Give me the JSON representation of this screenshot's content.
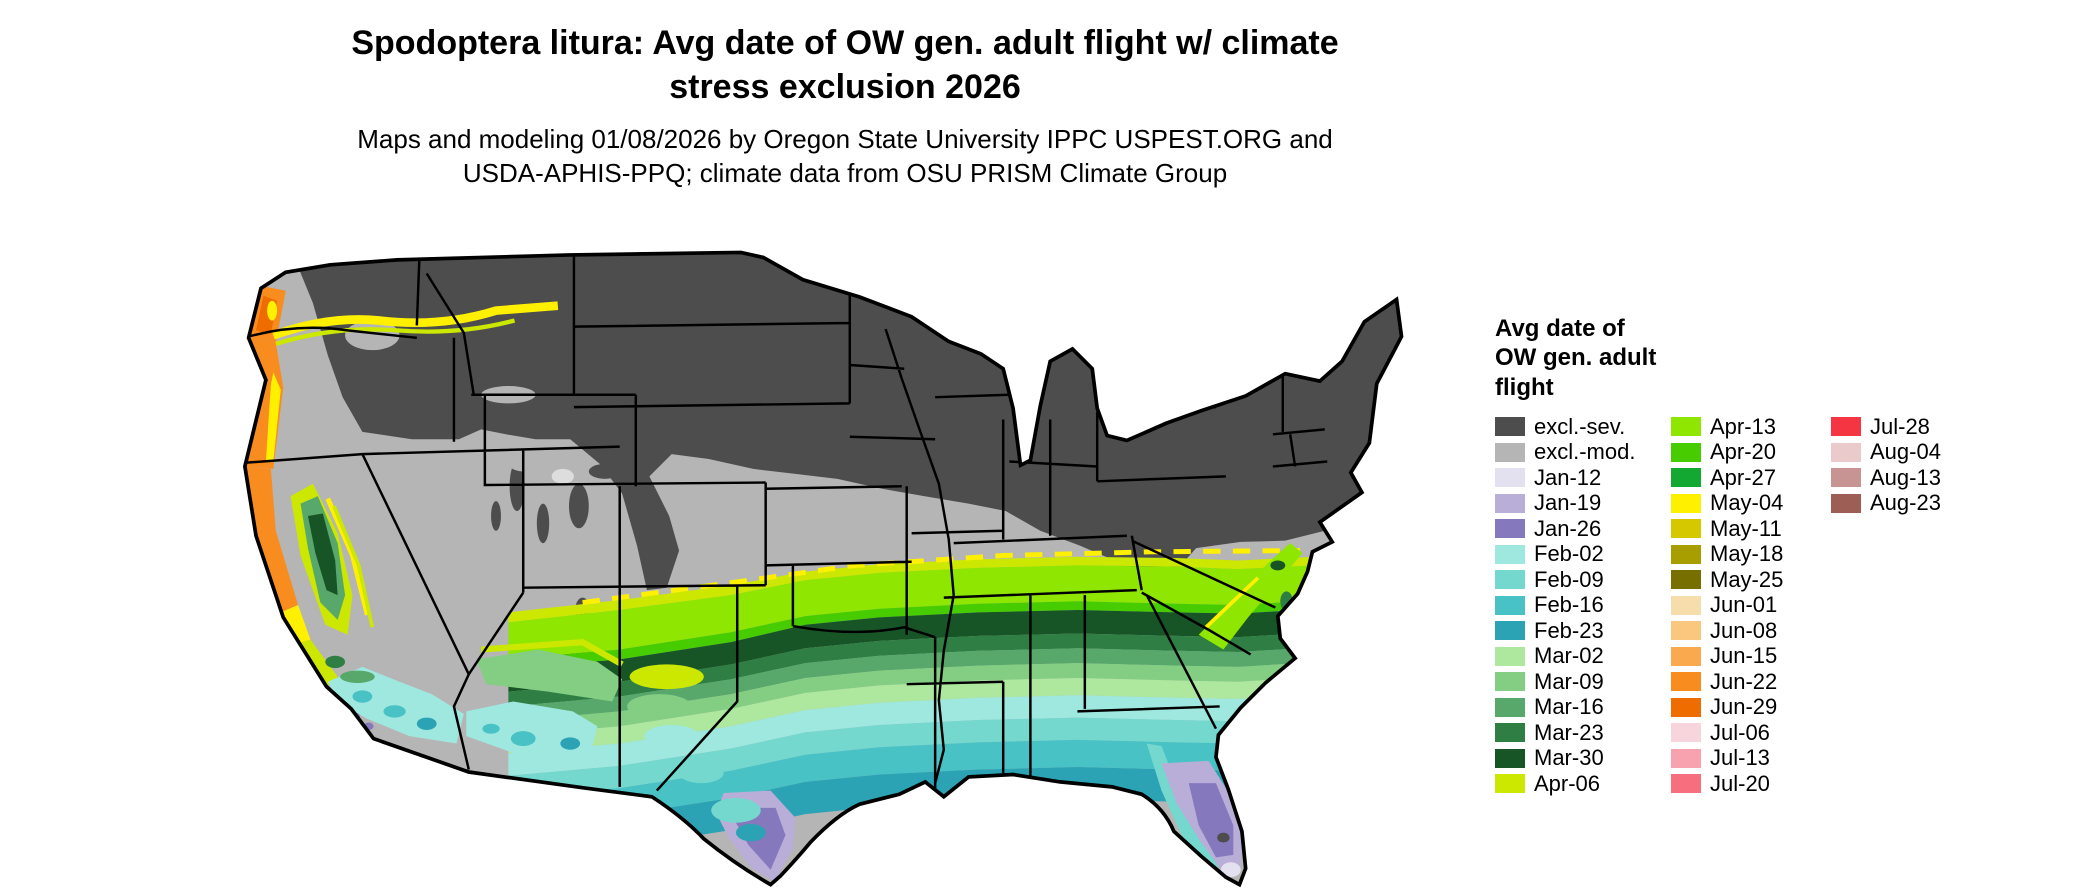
{
  "title": {
    "lines": [
      "Spodoptera litura: Avg date of OW gen. adult flight w/ climate",
      "stress exclusion 2026"
    ]
  },
  "subtitle": {
    "lines": [
      "Maps and modeling 01/08/2026 by Oregon State University IPPC USPEST.ORG and",
      "USDA-APHIS-PPQ; climate data from OSU PRISM Climate Group"
    ]
  },
  "legend": {
    "title_lines": [
      "Avg date of",
      "OW gen. adult",
      "flight"
    ],
    "columns": [
      {
        "entries": [
          {
            "label": "excl.-sev.",
            "color": "#4D4D4D"
          },
          {
            "label": "excl.-mod.",
            "color": "#B5B5B5"
          },
          {
            "label": "Jan-12",
            "color": "#E3E0F0"
          },
          {
            "label": "Jan-19",
            "color": "#B9AED8"
          },
          {
            "label": "Jan-26",
            "color": "#8678BD"
          },
          {
            "label": "Feb-02",
            "color": "#9FE8DF"
          },
          {
            "label": "Feb-09",
            "color": "#74D8CF"
          },
          {
            "label": "Feb-16",
            "color": "#48C2C5"
          },
          {
            "label": "Feb-23",
            "color": "#2BA3B4"
          },
          {
            "label": "Mar-02",
            "color": "#AEE89F"
          },
          {
            "label": "Mar-09",
            "color": "#83CE83"
          },
          {
            "label": "Mar-16",
            "color": "#57A86A"
          },
          {
            "label": "Mar-23",
            "color": "#2F7E44"
          },
          {
            "label": "Mar-30",
            "color": "#175426"
          },
          {
            "label": "Apr-06",
            "color": "#CCE800"
          }
        ]
      },
      {
        "entries": [
          {
            "label": "Apr-13",
            "color": "#8FE600"
          },
          {
            "label": "Apr-20",
            "color": "#47CC00"
          },
          {
            "label": "Apr-27",
            "color": "#12A832"
          },
          {
            "label": "May-04",
            "color": "#FFF000"
          },
          {
            "label": "May-11",
            "color": "#D6C800"
          },
          {
            "label": "May-18",
            "color": "#A89E00"
          },
          {
            "label": "May-25",
            "color": "#776F00"
          },
          {
            "label": "Jun-01",
            "color": "#F7DCAC"
          },
          {
            "label": "Jun-08",
            "color": "#F9C77E"
          },
          {
            "label": "Jun-15",
            "color": "#FBA94E"
          },
          {
            "label": "Jun-22",
            "color": "#F98C1E"
          },
          {
            "label": "Jun-29",
            "color": "#EF6C00"
          },
          {
            "label": "Jul-06",
            "color": "#F8D4DC"
          },
          {
            "label": "Jul-13",
            "color": "#F8A2B0"
          },
          {
            "label": "Jul-20",
            "color": "#F76F7F"
          }
        ]
      },
      {
        "entries": [
          {
            "label": "Jul-28",
            "color": "#F53541"
          },
          {
            "label": "Aug-04",
            "color": "#EACACA"
          },
          {
            "label": "Aug-13",
            "color": "#C79393"
          },
          {
            "label": "Aug-23",
            "color": "#9D5F55"
          }
        ]
      }
    ]
  },
  "chart_data": {
    "type": "heatmap",
    "title": "Spodoptera litura: Avg date of OW gen. adult flight w/ climate stress exclusion 2026",
    "legend_title": "Avg date of OW gen. adult flight",
    "region": "Continental United States",
    "categories": [
      "excl.-sev.",
      "excl.-mod.",
      "Jan-12",
      "Jan-19",
      "Jan-26",
      "Feb-02",
      "Feb-09",
      "Feb-16",
      "Feb-23",
      "Mar-02",
      "Mar-09",
      "Mar-16",
      "Mar-23",
      "Mar-30",
      "Apr-06",
      "Apr-13",
      "Apr-20",
      "Apr-27",
      "May-04",
      "May-11",
      "May-18",
      "May-25",
      "Jun-01",
      "Jun-08",
      "Jun-15",
      "Jun-22",
      "Jun-29",
      "Jul-06",
      "Jul-13",
      "Jul-20",
      "Jul-28",
      "Aug-04",
      "Aug-13",
      "Aug-23"
    ],
    "colors": [
      "#4D4D4D",
      "#B5B5B5",
      "#E3E0F0",
      "#B9AED8",
      "#8678BD",
      "#9FE8DF",
      "#74D8CF",
      "#48C2C5",
      "#2BA3B4",
      "#AEE89F",
      "#83CE83",
      "#57A86A",
      "#2F7E44",
      "#175426",
      "#CCE800",
      "#8FE600",
      "#47CC00",
      "#12A832",
      "#FFF000",
      "#D6C800",
      "#A89E00",
      "#776F00",
      "#F7DCAC",
      "#F9C77E",
      "#FBA94E",
      "#F98C1E",
      "#EF6C00",
      "#F8D4DC",
      "#F8A2B0",
      "#F76F7F",
      "#F53541",
      "#EACACA",
      "#C79393",
      "#9D5F55"
    ],
    "legend_position": "right"
  }
}
